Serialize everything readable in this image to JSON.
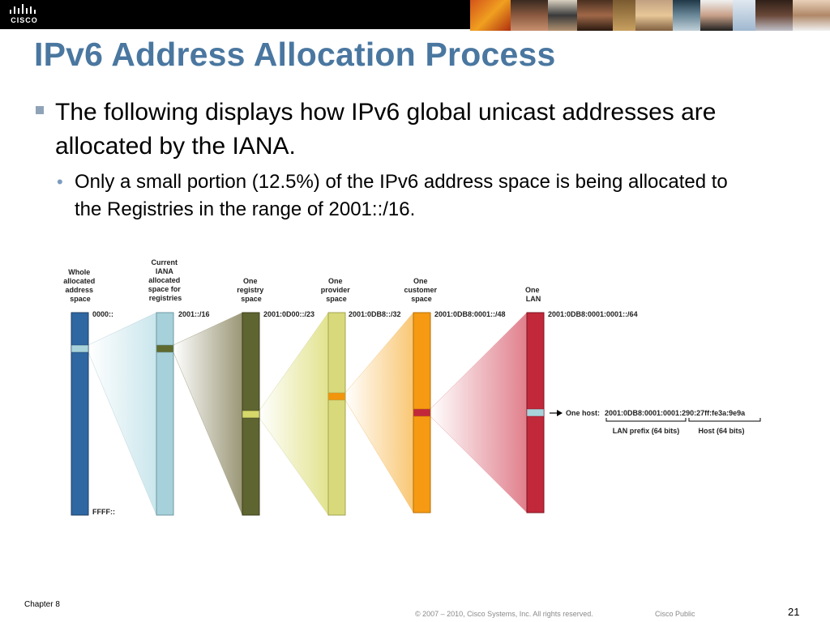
{
  "header": {
    "logo_text": "CISCO"
  },
  "title": "IPv6 Address Allocation Process",
  "bullets": {
    "level1": "The following displays how IPv6 global unicast addresses are allocated by the IANA.",
    "level2": "Only a small portion (12.5%) of the IPv6 address space is being allocated to the Registries in the range of 2001::/16."
  },
  "diagram": {
    "columns": [
      {
        "header": [
          "Whole",
          "allocated",
          "address",
          "space"
        ],
        "prefix": "0000::",
        "bottom": "FFFF::",
        "color": "#2f67a3",
        "highlight": "#a8d3db"
      },
      {
        "header": [
          "Current",
          "IANA",
          "allocated",
          "space for",
          "registries"
        ],
        "prefix": "2001::/16",
        "color": "#a6d1da",
        "highlight": "#5f6a2f"
      },
      {
        "header": [
          "One",
          "registry",
          "space"
        ],
        "prefix": "2001:0D00::/23",
        "color": "#5f6530",
        "highlight": "#d6d86a"
      },
      {
        "header": [
          "One",
          "provider",
          "space"
        ],
        "prefix": "2001:0DB8::/32",
        "color": "#d8d97a",
        "highlight": "#f2950c"
      },
      {
        "header": [
          "One",
          "customer",
          "space"
        ],
        "prefix": "2001:0DB8:0001::/48",
        "color": "#f59a12",
        "highlight": "#c2283a"
      },
      {
        "header": [
          "One",
          "LAN"
        ],
        "prefix": "2001:0DB8:0001:0001::/64",
        "color": "#c1283a",
        "highlight": "#a8d3db"
      }
    ],
    "host_prefix_label": "One host:",
    "host_address": "2001:0DB8:0001:0001:290:27ff:fe3a:9e9a",
    "lan_prefix_label": "LAN prefix (64 bits)",
    "host_bits_label": "Host (64 bits)"
  },
  "footer": {
    "chapter": "Chapter 8",
    "copyright": "© 2007 – 2010, Cisco Systems, Inc. All rights reserved.",
    "classification": "Cisco Public",
    "page": "21"
  },
  "colors": {
    "title": "#4a77a0",
    "accent_bar": "#000000"
  }
}
